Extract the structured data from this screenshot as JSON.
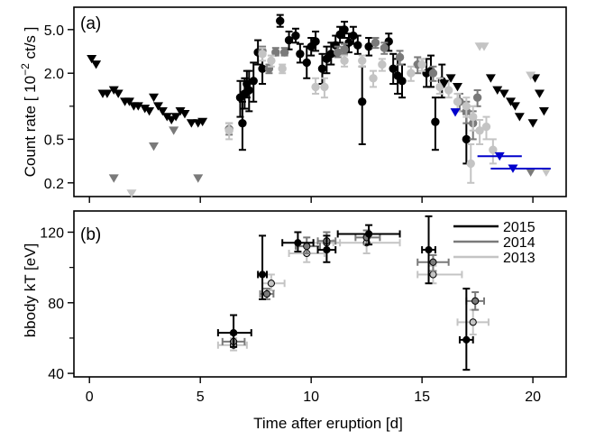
{
  "chart_data": [
    {
      "panel_label": "(a)",
      "type": "scatter",
      "ylabel": "Count rate [ 10^-2 ct/s ]",
      "ylabel_parts": {
        "before": "Count rate [ 10",
        "sup": "−2",
        "after": " ct/s ]"
      },
      "yscale": "log",
      "ylim": [
        0.15,
        8.0
      ],
      "xlim": [
        -0.7,
        21.5
      ],
      "yticks": [
        0.2,
        0.5,
        2.0,
        5.0
      ],
      "yticks_minor": [
        1.0
      ],
      "ytick_labels": [
        "0.2",
        "0.5",
        "2.0",
        "5.0"
      ],
      "series": [
        {
          "name": "2015",
          "color": "#000000",
          "points": [
            [
              8.6,
              6.0,
              5.3,
              6.8
            ],
            [
              9.0,
              4.0,
              3.3,
              4.8
            ],
            [
              9.3,
              4.4,
              3.8,
              5.1
            ],
            [
              9.5,
              3.0,
              2.5,
              3.7
            ],
            [
              9.8,
              2.5,
              1.8,
              3.5
            ],
            [
              10.0,
              3.5,
              2.9,
              4.2
            ],
            [
              10.2,
              3.9,
              3.2,
              4.8
            ],
            [
              10.5,
              2.2,
              1.6,
              3.0
            ],
            [
              10.7,
              2.7,
              2.0,
              3.5
            ],
            [
              10.9,
              3.0,
              2.4,
              3.8
            ],
            [
              11.1,
              3.6,
              2.9,
              4.4
            ],
            [
              11.3,
              4.5,
              3.8,
              5.3
            ],
            [
              11.5,
              5.0,
              4.2,
              5.9
            ],
            [
              11.7,
              3.8,
              3.1,
              4.6
            ],
            [
              11.9,
              4.4,
              3.7,
              5.3
            ],
            [
              12.1,
              3.6,
              3.0,
              4.4
            ],
            [
              12.3,
              1.1,
              0.45,
              2.3
            ],
            [
              12.6,
              3.5,
              2.9,
              4.2
            ],
            [
              13.5,
              3.9,
              3.2,
              4.6
            ],
            [
              13.7,
              2.2,
              1.6,
              3.0
            ],
            [
              13.9,
              1.9,
              1.3,
              2.7
            ],
            [
              14.1,
              1.7,
              1.2,
              2.4
            ],
            [
              7.2,
              1.4,
              0.9,
              2.1
            ],
            [
              7.4,
              1.7,
              1.1,
              2.5
            ],
            [
              7.6,
              3.1,
              2.4,
              4.0
            ],
            [
              7.8,
              2.2,
              1.6,
              3.0
            ],
            [
              7.0,
              1.3,
              0.95,
              1.8
            ],
            [
              7.1,
              1.6,
              1.2,
              2.1
            ],
            [
              6.8,
              1.2,
              0.8,
              1.7
            ],
            [
              6.9,
              0.7,
              0.4,
              1.1
            ],
            [
              15.2,
              2.0,
              1.5,
              2.7
            ],
            [
              15.4,
              2.1,
              1.5,
              2.9
            ],
            [
              15.6,
              0.72,
              0.4,
              1.2
            ],
            [
              15.9,
              1.7,
              1.2,
              2.4
            ],
            [
              17.0,
              0.5,
              0.3,
              0.85
            ]
          ],
          "hbars": []
        },
        {
          "name": "2014",
          "color": "#7a7a7a",
          "points": [
            [
              7.8,
              3.2,
              2.9,
              3.5
            ],
            [
              8.1,
              2.2,
              2.0,
              2.4
            ],
            [
              8.4,
              3.1,
              2.9,
              3.4
            ],
            [
              8.8,
              3.1,
              2.9,
              3.4
            ],
            [
              11.2,
              3.1,
              2.8,
              3.5
            ],
            [
              11.5,
              3.3,
              3.0,
              3.7
            ],
            [
              12.9,
              3.8,
              3.4,
              4.2
            ],
            [
              13.3,
              3.4,
              3.0,
              3.8
            ],
            [
              14.0,
              2.8,
              2.4,
              3.2
            ],
            [
              14.8,
              2.4,
              2.0,
              2.8
            ],
            [
              15.5,
              2.0,
              1.7,
              2.3
            ],
            [
              16.7,
              1.1,
              0.9,
              1.3
            ],
            [
              17.0,
              0.9,
              0.7,
              1.1
            ],
            [
              17.3,
              0.7,
              0.5,
              0.9
            ],
            [
              17.5,
              1.2,
              1.0,
              1.4
            ],
            [
              6.3,
              0.62,
              0.55,
              0.7
            ]
          ],
          "hbars": []
        },
        {
          "name": "2013",
          "color": "#c4c4c4",
          "points": [
            [
              7.8,
              3.0,
              2.6,
              3.4
            ],
            [
              8.2,
              2.6,
              2.3,
              2.9
            ],
            [
              8.7,
              2.2,
              2.0,
              2.4
            ],
            [
              10.2,
              1.5,
              1.3,
              1.8
            ],
            [
              10.6,
              1.5,
              1.2,
              1.8
            ],
            [
              11.5,
              2.6,
              2.3,
              2.9
            ],
            [
              12.3,
              2.6,
              2.3,
              2.9
            ],
            [
              12.8,
              1.8,
              1.5,
              2.1
            ],
            [
              13.2,
              2.4,
              2.1,
              2.7
            ],
            [
              14.5,
              2.0,
              1.7,
              2.3
            ],
            [
              15.0,
              2.4,
              2.1,
              2.7
            ],
            [
              15.8,
              1.5,
              1.3,
              1.8
            ],
            [
              16.2,
              1.4,
              1.2,
              1.7
            ],
            [
              16.6,
              1.1,
              0.9,
              1.3
            ],
            [
              17.0,
              1.0,
              0.8,
              1.2
            ],
            [
              17.3,
              0.8,
              0.6,
              1.0
            ],
            [
              17.6,
              0.6,
              0.45,
              0.75
            ],
            [
              17.9,
              0.65,
              0.5,
              0.8
            ],
            [
              17.2,
              0.3,
              0.2,
              0.45
            ],
            [
              6.3,
              0.6,
              0.5,
              0.7
            ],
            [
              18.2,
              0.4,
              0.3,
              0.5
            ]
          ],
          "hbars": []
        },
        {
          "name": "upper limits (black)",
          "color": "#000000",
          "marker": "triangle-down",
          "points": [
            [
              0.1,
              2.7
            ],
            [
              0.3,
              2.4
            ],
            [
              0.6,
              1.3
            ],
            [
              0.8,
              1.3
            ],
            [
              1.1,
              1.4
            ],
            [
              1.3,
              1.3
            ],
            [
              1.6,
              1.1
            ],
            [
              1.8,
              1.1
            ],
            [
              2.0,
              1.0
            ],
            [
              2.2,
              1.0
            ],
            [
              2.5,
              0.95
            ],
            [
              2.7,
              0.9
            ],
            [
              2.9,
              1.2
            ],
            [
              3.1,
              1.0
            ],
            [
              3.3,
              0.9
            ],
            [
              3.5,
              0.8
            ],
            [
              3.7,
              0.75
            ],
            [
              3.9,
              0.8
            ],
            [
              4.1,
              0.9
            ],
            [
              4.3,
              0.85
            ],
            [
              4.6,
              0.7
            ],
            [
              4.9,
              0.7
            ],
            [
              5.1,
              0.72
            ],
            [
              16.0,
              1.6
            ],
            [
              16.3,
              1.8
            ],
            [
              16.6,
              1.5
            ],
            [
              18.1,
              1.8
            ],
            [
              18.4,
              1.4
            ],
            [
              18.7,
              1.3
            ],
            [
              19.0,
              1.1
            ],
            [
              19.2,
              1.0
            ],
            [
              19.4,
              0.8
            ],
            [
              20.1,
              1.8
            ],
            [
              20.3,
              1.3
            ],
            [
              20.5,
              0.9
            ],
            [
              20.0,
              0.7
            ]
          ]
        },
        {
          "name": "upper limits (grey)",
          "color": "#7a7a7a",
          "marker": "triangle-down",
          "points": [
            [
              1.1,
              0.22
            ],
            [
              2.9,
              0.43
            ],
            [
              3.8,
              0.6
            ],
            [
              4.9,
              0.22
            ],
            [
              19.9,
              0.25
            ]
          ]
        },
        {
          "name": "upper limits (lightgrey)",
          "color": "#c4c4c4",
          "marker": "triangle-down",
          "points": [
            [
              1.9,
              0.16
            ],
            [
              17.6,
              3.5
            ],
            [
              17.8,
              3.5
            ],
            [
              19.9,
              1.9
            ],
            [
              20.6,
              0.25
            ]
          ]
        },
        {
          "name": "upper limits (blue)",
          "color": "#0000cc",
          "marker": "triangle-down",
          "points": [
            [
              16.5,
              0.88
            ],
            [
              18.5,
              0.35
            ],
            [
              19.1,
              0.27
            ]
          ],
          "hbars": [
            [
              17.5,
              19.5,
              0.35
            ],
            [
              18.1,
              20.8,
              0.27
            ]
          ]
        }
      ]
    },
    {
      "panel_label": "(b)",
      "type": "scatter",
      "xlabel": "Time after eruption [d]",
      "ylabel": "bbody kT [eV]",
      "xlim": [
        -0.7,
        21.5
      ],
      "ylim": [
        38,
        132
      ],
      "xticks": [
        0,
        5,
        10,
        15,
        20
      ],
      "yticks": [
        40,
        80,
        120
      ],
      "yticks_minor": [
        60,
        100
      ],
      "legend": {
        "position": "top-right",
        "entries": [
          "2015",
          "2014",
          "2013"
        ]
      },
      "series": [
        {
          "name": "2015",
          "color": "#000000",
          "points": [
            [
              6.5,
              63,
              55,
              73,
              5.8,
              7.3
            ],
            [
              7.8,
              96,
              82,
              118,
              7.6,
              8.0
            ],
            [
              9.4,
              114,
              109,
              120,
              8.7,
              10.1
            ],
            [
              10.7,
              110,
              103,
              118,
              10.3,
              11.1
            ],
            [
              12.6,
              119,
              113,
              124,
              11.2,
              14.0
            ],
            [
              15.3,
              110,
              91,
              129,
              15.0,
              15.6
            ],
            [
              17.0,
              59,
              42,
              88,
              16.7,
              17.3
            ]
          ]
        },
        {
          "name": "2014",
          "color": "#7a7a7a",
          "points": [
            [
              6.5,
              58,
              55,
              62,
              6.0,
              7.0
            ],
            [
              8.0,
              85,
              82,
              88,
              7.7,
              8.3
            ],
            [
              9.8,
              112,
              108,
              117,
              9.3,
              10.4
            ],
            [
              10.7,
              115,
              110,
              120,
              10.3,
              11.1
            ],
            [
              12.5,
              117,
              113,
              121,
              12.0,
              13.1
            ],
            [
              15.5,
              103,
              98,
              107,
              14.8,
              16.2
            ],
            [
              17.4,
              81,
              76,
              86,
              17.0,
              17.8
            ]
          ]
        },
        {
          "name": "2013",
          "color": "#c4c4c4",
          "points": [
            [
              6.5,
              56,
              53,
              60,
              5.8,
              7.1
            ],
            [
              8.2,
              91,
              87,
              96,
              7.8,
              8.8
            ],
            [
              9.8,
              108,
              103,
              113,
              9.0,
              10.6
            ],
            [
              10.7,
              114,
              109,
              120,
              10.1,
              11.3
            ],
            [
              12.5,
              114,
              108,
              118,
              11.0,
              14.0
            ],
            [
              15.5,
              96,
              91,
              101,
              14.8,
              16.8
            ],
            [
              17.3,
              69,
              62,
              76,
              16.6,
              18.0
            ]
          ]
        }
      ]
    }
  ]
}
